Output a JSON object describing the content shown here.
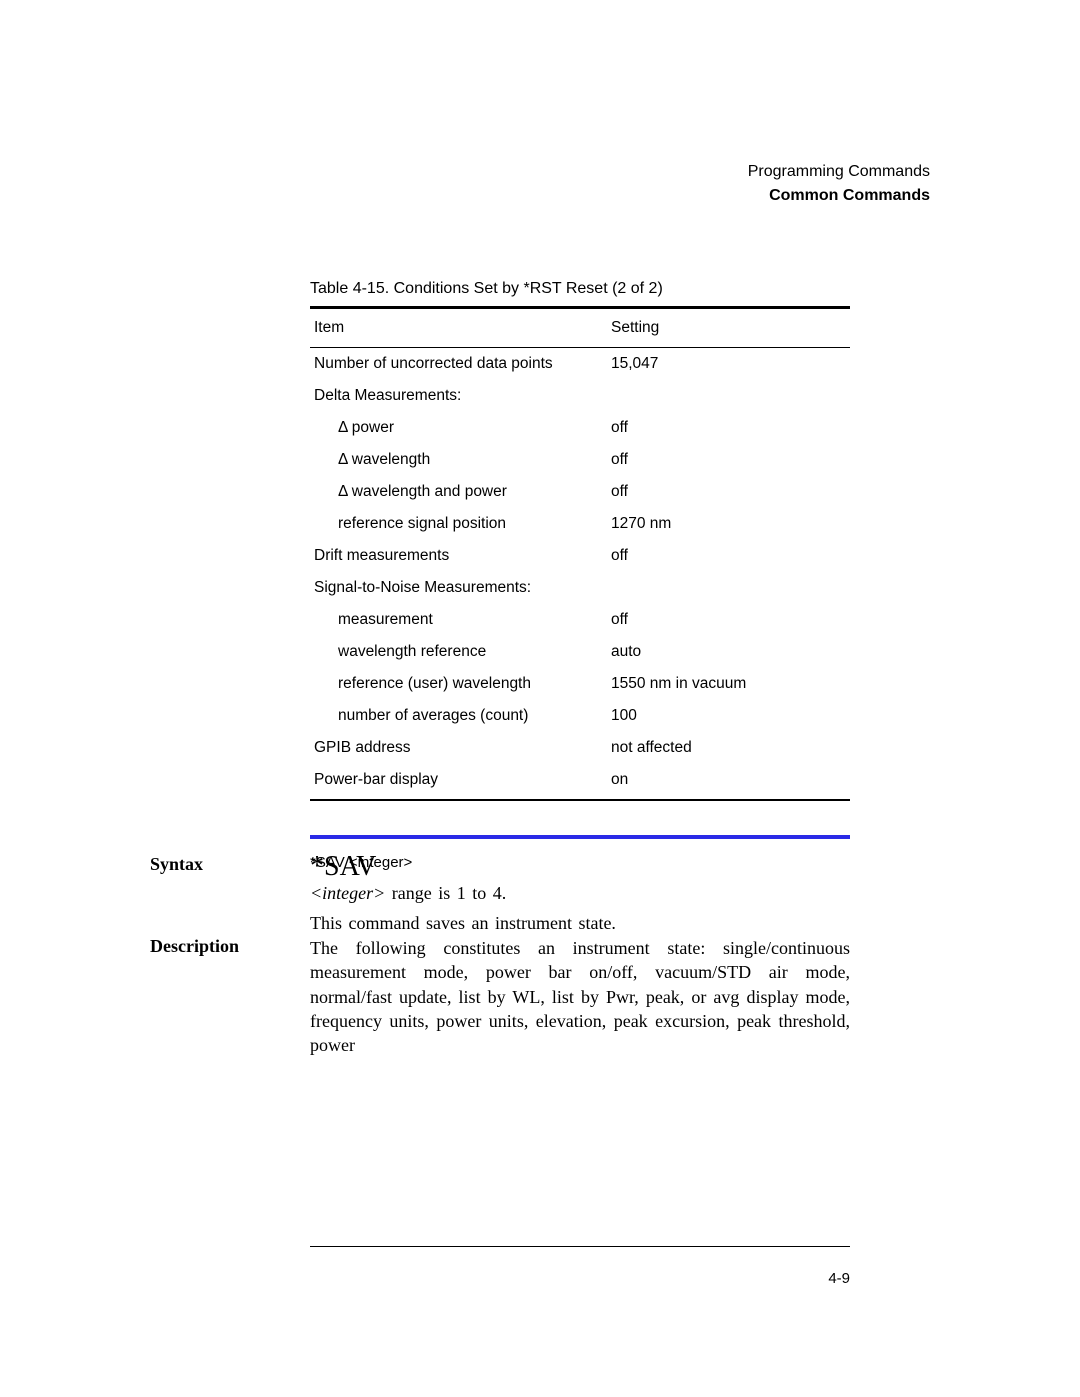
{
  "header": {
    "chapter": "Programming Commands",
    "section": "Common Commands"
  },
  "table": {
    "caption": "Table 4-15. Conditions Set by *RST Reset (2 of 2)",
    "columns": [
      "Item",
      "Setting"
    ],
    "rows": [
      {
        "item": "Number of uncorrected data points",
        "setting": "15,047",
        "indent": false
      },
      {
        "item": "Delta Measurements:",
        "setting": "",
        "indent": false
      },
      {
        "item": "Δ power",
        "setting": "off",
        "indent": true
      },
      {
        "item": "Δ wavelength",
        "setting": "off",
        "indent": true
      },
      {
        "item": "Δ wavelength and power",
        "setting": "off",
        "indent": true
      },
      {
        "item": "reference signal position",
        "setting": "1270 nm",
        "indent": true
      },
      {
        "item": "Drift measurements",
        "setting": "off",
        "indent": false
      },
      {
        "item": "Signal-to-Noise Measurements:",
        "setting": "",
        "indent": false
      },
      {
        "item": "measurement",
        "setting": "off",
        "indent": true
      },
      {
        "item": "wavelength reference",
        "setting": "auto",
        "indent": true
      },
      {
        "item": "reference (user) wavelength",
        "setting": "1550 nm in vacuum",
        "indent": true
      },
      {
        "item": "number of averages (count)",
        "setting": "100",
        "indent": true
      },
      {
        "item": "GPIB address",
        "setting": "not affected",
        "indent": false
      },
      {
        "item": "Power-bar display",
        "setting": "on",
        "indent": false
      }
    ]
  },
  "command": {
    "title": "*SAV",
    "intro": "This command saves an instrument state.",
    "syntax_label": "Syntax",
    "syntax_code": "*SAV <integer>",
    "syntax_note_pre": "<integer>",
    "syntax_note_post": " range is 1 to 4.",
    "description_label": "Description",
    "description_text": "The following constitutes an instrument state: single/continuous measurement mode, power bar on/off, vacuum/STD air mode, normal/fast update, list by WL, list by Pwr, peak, or avg display mode, frequency units, power units, elevation, peak excursion, peak threshold, power"
  },
  "page_number": "4-9",
  "style": {
    "rule_color": "#2a2ae6",
    "text_color": "#000000",
    "background": "#ffffff"
  }
}
